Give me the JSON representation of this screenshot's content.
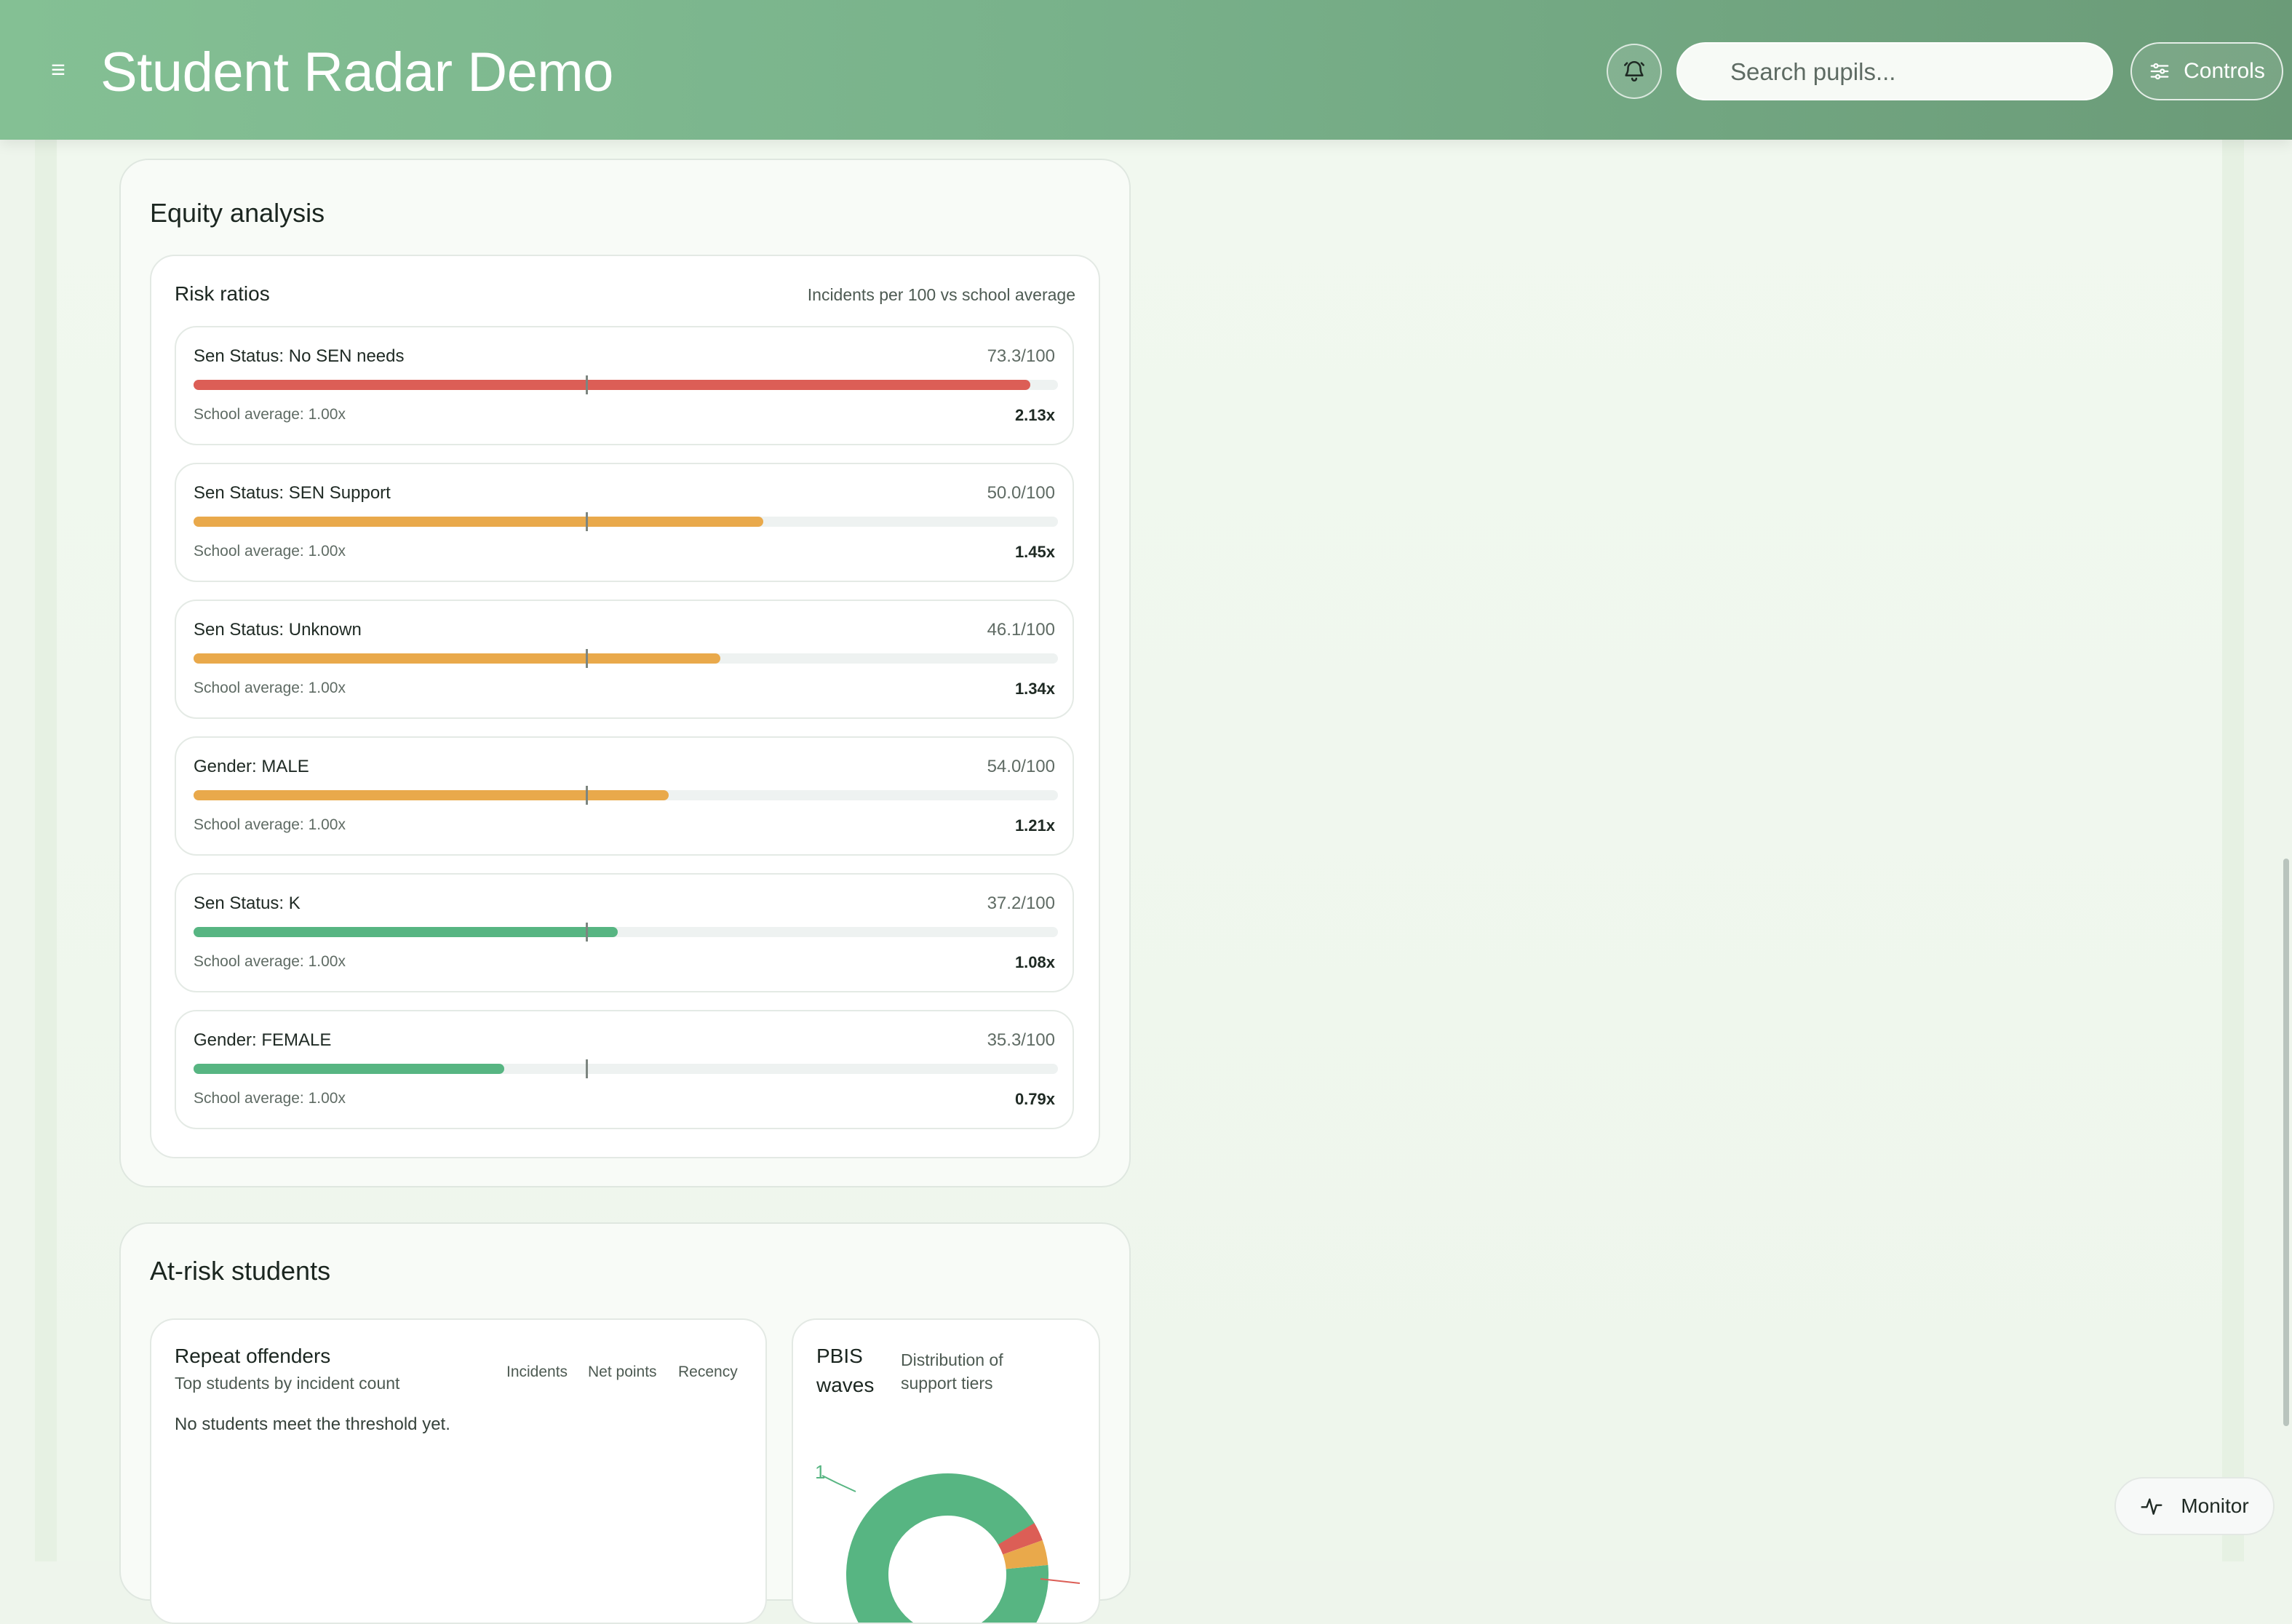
{
  "header": {
    "menu_icon": "menu-icon",
    "title": "Student Radar Demo",
    "bell_icon": "bell-icon",
    "search": {
      "placeholder": "Search pupils...",
      "value": ""
    },
    "controls_label": "Controls",
    "controls_icon": "sliders-icon"
  },
  "equity": {
    "title": "Equity analysis",
    "card_title": "Risk ratios",
    "card_subtitle": "Incidents per 100 vs school average",
    "school_average_ratio": 1.0,
    "items": [
      {
        "label": "Sen Status: No SEN needs",
        "rate": "73.3/100",
        "avg": "School average: 1.00x",
        "ratio": "2.13x",
        "ratio_value": 2.13,
        "color": "#dc5e56"
      },
      {
        "label": "Sen Status: SEN Support",
        "rate": "50.0/100",
        "avg": "School average: 1.00x",
        "ratio": "1.45x",
        "ratio_value": 1.45,
        "color": "#e9a94b"
      },
      {
        "label": "Sen Status: Unknown",
        "rate": "46.1/100",
        "avg": "School average: 1.00x",
        "ratio": "1.34x",
        "ratio_value": 1.34,
        "color": "#e9a94b"
      },
      {
        "label": "Gender: MALE",
        "rate": "54.0/100",
        "avg": "School average: 1.00x",
        "ratio": "1.21x",
        "ratio_value": 1.21,
        "color": "#e9a94b"
      },
      {
        "label": "Sen Status: K",
        "rate": "37.2/100",
        "avg": "School average: 1.00x",
        "ratio": "1.08x",
        "ratio_value": 1.08,
        "color": "#57b582"
      },
      {
        "label": "Gender: FEMALE",
        "rate": "35.3/100",
        "avg": "School average: 1.00x",
        "ratio": "0.79x",
        "ratio_value": 0.79,
        "color": "#57b582"
      }
    ]
  },
  "at_risk": {
    "title": "At-risk students",
    "repeat": {
      "title": "Repeat offenders",
      "subtitle": "Top students by incident count",
      "tabs": [
        "Incidents",
        "Net points",
        "Recency"
      ],
      "empty": "No students meet the threshold yet."
    },
    "pbis": {
      "title_line1": "PBIS",
      "title_line2": "waves",
      "subtitle_line1": "Distribution of",
      "subtitle_line2": "support tiers",
      "chart_data": {
        "type": "pie",
        "donut": true,
        "slices": [
          {
            "label": "1",
            "value": 0.93,
            "color": "#57b582"
          },
          {
            "value": 0.03,
            "color": "#dc5e56"
          },
          {
            "value": 0.04,
            "color": "#e9a94b"
          }
        ]
      }
    }
  },
  "monitor": {
    "label": "Monitor",
    "icon": "activity-icon"
  },
  "colors": {
    "header_start": "#84c094",
    "header_end": "#6b9b78",
    "red": "#dc5e56",
    "amber": "#e9a94b",
    "green": "#57b582"
  }
}
